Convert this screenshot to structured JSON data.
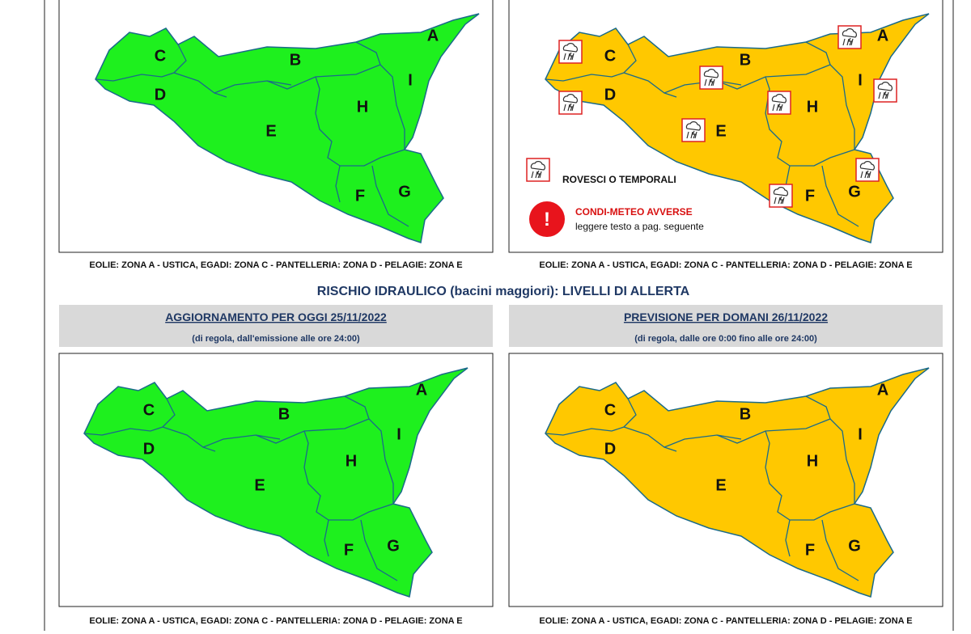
{
  "top_maps": [
    {
      "zones": [
        "A",
        "B",
        "C",
        "D",
        "E",
        "F",
        "G",
        "H",
        "I"
      ],
      "footer": "EOLIE: ZONA A - USTICA, EGADI: ZONA C - PANTELLERIA: ZONA D - PELAGIE: ZONA E"
    },
    {
      "zones": [
        "A",
        "B",
        "C",
        "D",
        "E",
        "F",
        "G",
        "H",
        "I"
      ],
      "footer": "EOLIE: ZONA A - USTICA, EGADI: ZONA C - PANTELLERIA: ZONA D - PELAGIE: ZONA E"
    }
  ],
  "legend": {
    "storm": "ROVESCI O TEMPORALI",
    "warning_title": "CONDI-METEO AVVERSE",
    "warning_text": "leggere testo a pag. seguente"
  },
  "section_title": "RISCHIO IDRAULICO (bacini maggiori): LIVELLI DI ALLERTA",
  "panels": [
    {
      "heading": "AGGIORNAMENTO PER OGGI 25/11/2022",
      "subheading": "(di regola, dall'emissione alle ore 24:00)",
      "zones": [
        "A",
        "B",
        "C",
        "D",
        "E",
        "F",
        "G",
        "H",
        "I"
      ],
      "footer": "EOLIE: ZONA A - USTICA, EGADI: ZONA C - PANTELLERIA: ZONA D - PELAGIE: ZONA E"
    },
    {
      "heading": "PREVISIONE PER DOMANI 26/11/2022",
      "subheading": "(di regola, dalle ore 0:00 fino alle ore 24:00)",
      "zones": [
        "A",
        "B",
        "C",
        "D",
        "E",
        "F",
        "G",
        "H",
        "I"
      ],
      "footer": "EOLIE: ZONA A - USTICA, EGADI: ZONA C - PANTELLERIA: ZONA D - PELAGIE: ZONA E"
    }
  ]
}
